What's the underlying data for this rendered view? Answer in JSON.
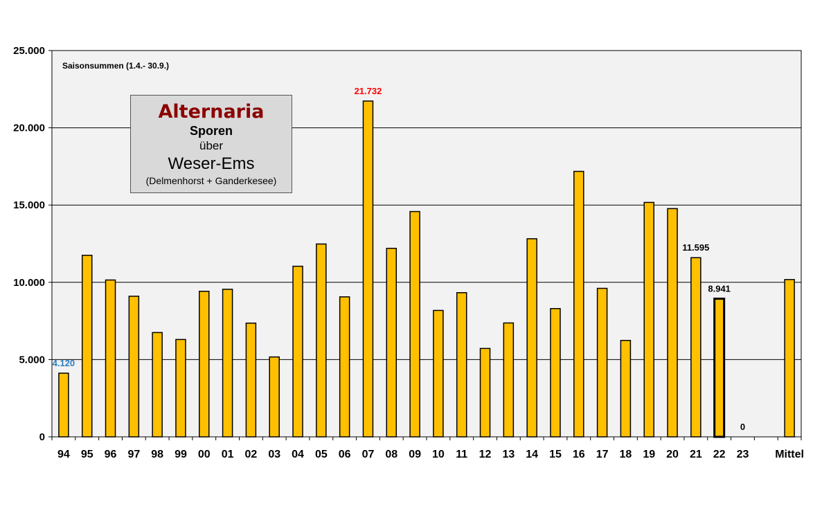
{
  "chart_data": {
    "type": "bar",
    "categories": [
      "94",
      "95",
      "96",
      "97",
      "98",
      "99",
      "00",
      "01",
      "02",
      "03",
      "04",
      "05",
      "06",
      "07",
      "08",
      "09",
      "10",
      "11",
      "12",
      "13",
      "14",
      "15",
      "16",
      "17",
      "18",
      "19",
      "20",
      "21",
      "22",
      "23",
      "",
      "Mittel"
    ],
    "values": [
      4120,
      11750,
      10150,
      9100,
      6750,
      6300,
      9420,
      9550,
      7360,
      5170,
      11040,
      12480,
      9060,
      21732,
      12200,
      14580,
      8180,
      9330,
      5720,
      7370,
      12820,
      8300,
      17180,
      9610,
      6240,
      15170,
      14770,
      11595,
      8941,
      0,
      null,
      10180
    ],
    "data_labels": [
      {
        "index": 0,
        "text": "4.120",
        "color": "#2a7fc4"
      },
      {
        "index": 13,
        "text": "21.732",
        "color": "#ff0000"
      },
      {
        "index": 27,
        "text": "11.595",
        "color": "#000000"
      },
      {
        "index": 28,
        "text": "8.941",
        "color": "#000000"
      },
      {
        "index": 29,
        "text": "0",
        "color": "#000000"
      }
    ],
    "highlight_index": 28,
    "ylim": [
      0,
      25000
    ],
    "y_ticks": [
      {
        "value": 0,
        "label": "0"
      },
      {
        "value": 5000,
        "label": "5.000"
      },
      {
        "value": 10000,
        "label": "10.000"
      },
      {
        "value": 15000,
        "label": "15.000"
      },
      {
        "value": 20000,
        "label": "20.000"
      },
      {
        "value": 25000,
        "label": "25.000"
      }
    ],
    "grid": true,
    "bar_color": "#ffc000",
    "plot_background": "#f2f2f2",
    "note": "Saisonsummen  (1.4.- 30.9.)"
  },
  "title_box": {
    "line1": "Alternaria",
    "line2": "Sporen",
    "line3": "über",
    "line4": "Weser-Ems",
    "line5": "(Delmenhorst  + Ganderkesee)"
  }
}
